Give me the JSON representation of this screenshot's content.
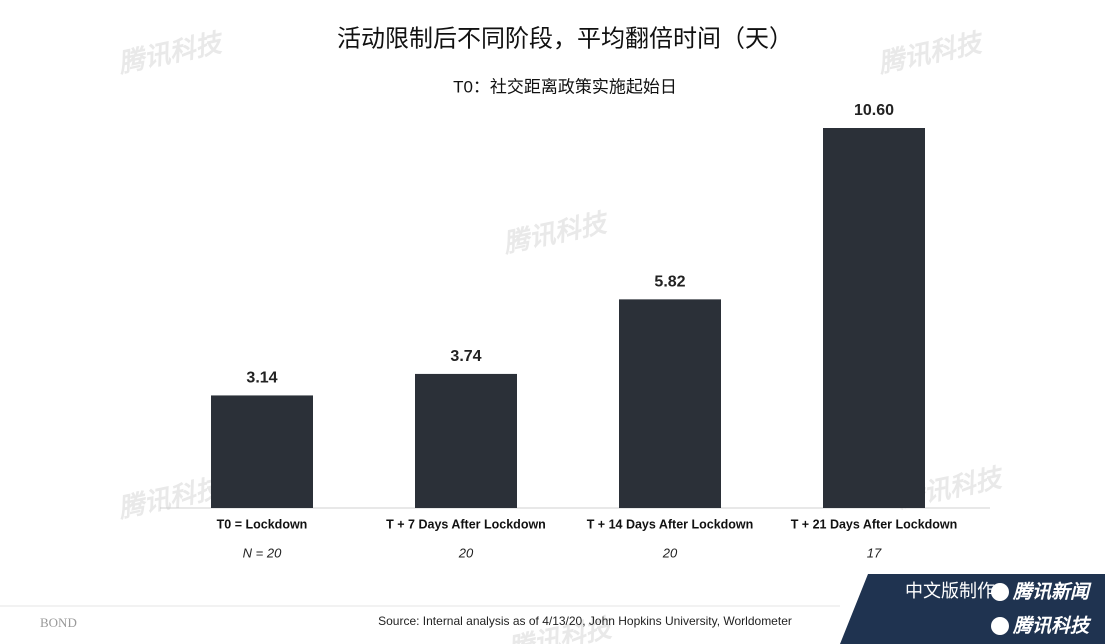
{
  "chart_data": {
    "type": "bar",
    "title": "活动限制后不同阶段，平均翻倍时间（天）",
    "subtitle": "T0：社交距离政策实施起始日",
    "categories": [
      "T0 = Lockdown",
      "T + 7 Days After Lockdown",
      "T + 14 Days After Lockdown",
      "T + 21 Days After Lockdown"
    ],
    "values": [
      3.14,
      3.74,
      5.82,
      10.6
    ],
    "value_labels": [
      "3.14",
      "3.74",
      "5.82",
      "10.60"
    ],
    "sample_sizes": [
      "N = 20",
      "20",
      "20",
      "17"
    ],
    "color": "#2b3038",
    "source": "Source: Internal analysis as of 4/13/20, John Hopkins University, Worldometer",
    "brand": "BOND",
    "credit": "中文版制作:",
    "credit_names": [
      "腾讯新闻",
      "腾讯科技"
    ],
    "watermark": "腾讯科技"
  }
}
